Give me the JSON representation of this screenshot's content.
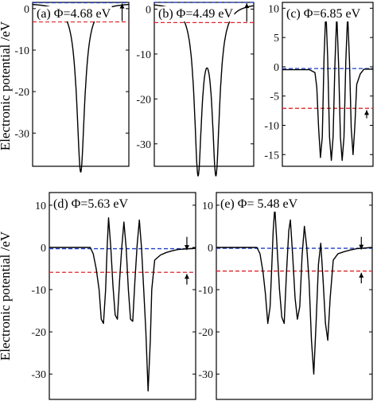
{
  "figure": {
    "ylabel_top": "Electronic potential /eV",
    "ylabel_bottom": "Electronic potential /eV"
  },
  "chart_data": [
    {
      "type": "line",
      "panel": "(a)",
      "title": "(a) Φ=4.68 eV",
      "ylim": [
        -38,
        1.5
      ],
      "yticks": [
        0,
        -10,
        -20,
        -30
      ],
      "ytick_labels": [
        "0",
        "-10",
        "-20",
        "-30"
      ],
      "reference_lines": [
        {
          "name": "vacuum level",
          "y": 1.4,
          "color": "#1f3fcf",
          "style": "dashed"
        },
        {
          "name": "Fermi level",
          "y": -3.2,
          "color": "#e0262a",
          "style": "dashed"
        }
      ],
      "arrows": [
        {
          "x": 0.93,
          "from": -3.0,
          "to": 1.2
        }
      ],
      "series": [
        {
          "color": "#000000",
          "baseline": 1.4,
          "peaks": [
            {
              "x": 0.5,
              "depth": -39.4,
              "width": 0.05
            }
          ]
        }
      ]
    },
    {
      "type": "line",
      "panel": "(b)",
      "title": "(b) Φ=4.49 eV",
      "ylim": [
        -35,
        1.5
      ],
      "yticks": [
        0,
        -10,
        -20,
        -30
      ],
      "ytick_labels": [
        "0",
        "-10",
        "-20",
        "-30"
      ],
      "reference_lines": [
        {
          "name": "vacuum level",
          "y": 1.5,
          "color": "#1f3fcf",
          "style": "dashed"
        },
        {
          "name": "Fermi level",
          "y": -3.0,
          "color": "#e0262a",
          "style": "dashed"
        }
      ],
      "arrows": [
        {
          "x": 0.93,
          "from": -2.8,
          "to": 1.3
        }
      ],
      "series": [
        {
          "color": "#000000",
          "baseline": 1.5,
          "peaks": [
            {
              "x": 0.44,
              "depth": -35.0,
              "width": 0.045
            },
            {
              "x": 0.62,
              "depth": -35.0,
              "width": 0.045
            }
          ]
        }
      ]
    },
    {
      "type": "line",
      "panel": "(c)",
      "title": "(c) Φ=6.85 eV",
      "ylim": [
        -17,
        11
      ],
      "yticks": [
        10,
        5,
        0,
        -5,
        -10,
        -15
      ],
      "ytick_labels": [
        "10",
        "5",
        "0",
        "-5",
        "-10",
        "-15"
      ],
      "reference_lines": [
        {
          "name": "vacuum level",
          "y": -0.3,
          "color": "#1f3fcf",
          "style": "dashed"
        },
        {
          "name": "Fermi level",
          "y": -7.1,
          "color": "#e0262a",
          "style": "dashed"
        }
      ],
      "arrows": [
        {
          "x": 0.93,
          "from": -8.8,
          "to": -7.4
        }
      ],
      "series": [
        {
          "color": "#000000",
          "baseline": -0.3,
          "points": [
            [
              0.0,
              -0.5
            ],
            [
              0.3,
              -0.5
            ],
            [
              0.36,
              -1.0
            ],
            [
              0.38,
              -3.5
            ],
            [
              0.4,
              -10.5
            ],
            [
              0.42,
              -15.5
            ],
            [
              0.44,
              -12.0
            ],
            [
              0.46,
              1.5
            ],
            [
              0.48,
              9.8
            ],
            [
              0.5,
              1.5
            ],
            [
              0.52,
              -12.0
            ],
            [
              0.54,
              -16.0
            ],
            [
              0.56,
              -12.0
            ],
            [
              0.58,
              0.5
            ],
            [
              0.6,
              9.0
            ],
            [
              0.62,
              0.5
            ],
            [
              0.64,
              -12.0
            ],
            [
              0.66,
              -16.0
            ],
            [
              0.68,
              -12.0
            ],
            [
              0.7,
              1.0
            ],
            [
              0.72,
              9.0
            ],
            [
              0.74,
              1.0
            ],
            [
              0.76,
              -10.5
            ],
            [
              0.78,
              -15.0
            ],
            [
              0.8,
              -10.0
            ],
            [
              0.82,
              -3.0
            ],
            [
              0.86,
              -1.2
            ],
            [
              0.9,
              -0.4
            ],
            [
              1.0,
              -0.4
            ]
          ]
        }
      ]
    },
    {
      "type": "line",
      "panel": "(d)",
      "title": "(d) Φ=5.63 eV",
      "ylim": [
        -36,
        13
      ],
      "yticks": [
        10,
        0,
        -10,
        -20,
        -30
      ],
      "ytick_labels": [
        "10",
        "0",
        "-10",
        "-20",
        "-30"
      ],
      "reference_lines": [
        {
          "name": "vacuum level",
          "y": -0.3,
          "color": "#1f3fcf",
          "style": "dashed"
        },
        {
          "name": "Fermi level",
          "y": -5.9,
          "color": "#e0262a",
          "style": "dashed"
        }
      ],
      "arrows": [
        {
          "x": 0.94,
          "from": 2.5,
          "to": -0.6
        },
        {
          "x": 0.94,
          "from": -8.8,
          "to": -6.3
        }
      ],
      "series": [
        {
          "color": "#000000",
          "baseline": -0.3,
          "points": [
            [
              0.0,
              0.0
            ],
            [
              0.28,
              0.0
            ],
            [
              0.3,
              -1.5
            ],
            [
              0.32,
              -5.0
            ],
            [
              0.34,
              -10.0
            ],
            [
              0.355,
              -17.0
            ],
            [
              0.37,
              -18.0
            ],
            [
              0.385,
              -10.0
            ],
            [
              0.395,
              0.0
            ],
            [
              0.405,
              7.0
            ],
            [
              0.42,
              0.0
            ],
            [
              0.435,
              -9.0
            ],
            [
              0.45,
              -16.0
            ],
            [
              0.465,
              -17.0
            ],
            [
              0.48,
              -8.0
            ],
            [
              0.495,
              0.0
            ],
            [
              0.51,
              6.0
            ],
            [
              0.525,
              0.0
            ],
            [
              0.54,
              -10.0
            ],
            [
              0.555,
              -17.0
            ],
            [
              0.57,
              -17.5
            ],
            [
              0.585,
              -8.0
            ],
            [
              0.6,
              0.5
            ],
            [
              0.615,
              6.5
            ],
            [
              0.63,
              0.0
            ],
            [
              0.645,
              -10.0
            ],
            [
              0.66,
              -20.0
            ],
            [
              0.675,
              -34.0
            ],
            [
              0.69,
              -22.0
            ],
            [
              0.7,
              -10.0
            ],
            [
              0.72,
              -3.0
            ],
            [
              0.76,
              -1.8
            ],
            [
              0.8,
              -1.2
            ],
            [
              0.84,
              -0.8
            ],
            [
              0.88,
              -0.5
            ],
            [
              1.0,
              -0.2
            ]
          ]
        }
      ]
    },
    {
      "type": "line",
      "panel": "(e)",
      "title": "(e) Φ= 5.48 eV",
      "ylim": [
        -36,
        13
      ],
      "yticks": [
        10,
        0,
        -10,
        -20,
        -30
      ],
      "ytick_labels": [
        "10",
        "0",
        "-10",
        "-20",
        "-30"
      ],
      "reference_lines": [
        {
          "name": "vacuum level",
          "y": -0.2,
          "color": "#1f3fcf",
          "style": "dashed"
        },
        {
          "name": "Fermi level",
          "y": -5.6,
          "color": "#e0262a",
          "style": "dashed"
        }
      ],
      "arrows": [
        {
          "x": 0.93,
          "from": 2.5,
          "to": -0.5
        },
        {
          "x": 0.93,
          "from": -8.5,
          "to": -6.0
        }
      ],
      "series": [
        {
          "color": "#000000",
          "baseline": -0.2,
          "points": [
            [
              0.0,
              0.0
            ],
            [
              0.26,
              0.0
            ],
            [
              0.28,
              -1.5
            ],
            [
              0.3,
              -6.0
            ],
            [
              0.315,
              -11.0
            ],
            [
              0.33,
              -18.0
            ],
            [
              0.345,
              -14.0
            ],
            [
              0.355,
              -5.0
            ],
            [
              0.365,
              4.0
            ],
            [
              0.375,
              9.5
            ],
            [
              0.39,
              0.0
            ],
            [
              0.405,
              -10.0
            ],
            [
              0.42,
              -16.5
            ],
            [
              0.435,
              -18.0
            ],
            [
              0.45,
              -6.0
            ],
            [
              0.465,
              4.0
            ],
            [
              0.475,
              6.5
            ],
            [
              0.49,
              -2.0
            ],
            [
              0.505,
              -12.0
            ],
            [
              0.52,
              -17.0
            ],
            [
              0.535,
              -14.0
            ],
            [
              0.55,
              -2.0
            ],
            [
              0.565,
              5.0
            ],
            [
              0.58,
              0.0
            ],
            [
              0.595,
              -8.0
            ],
            [
              0.61,
              -22.0
            ],
            [
              0.625,
              -30.0
            ],
            [
              0.64,
              -18.0
            ],
            [
              0.655,
              -4.0
            ],
            [
              0.67,
              1.0
            ],
            [
              0.685,
              -8.0
            ],
            [
              0.7,
              -18.0
            ],
            [
              0.715,
              -22.0
            ],
            [
              0.73,
              -12.0
            ],
            [
              0.75,
              -3.0
            ],
            [
              0.78,
              -1.5
            ],
            [
              0.82,
              -1.0
            ],
            [
              0.86,
              -0.6
            ],
            [
              0.9,
              -0.3
            ],
            [
              1.0,
              0.0
            ]
          ]
        }
      ]
    }
  ]
}
